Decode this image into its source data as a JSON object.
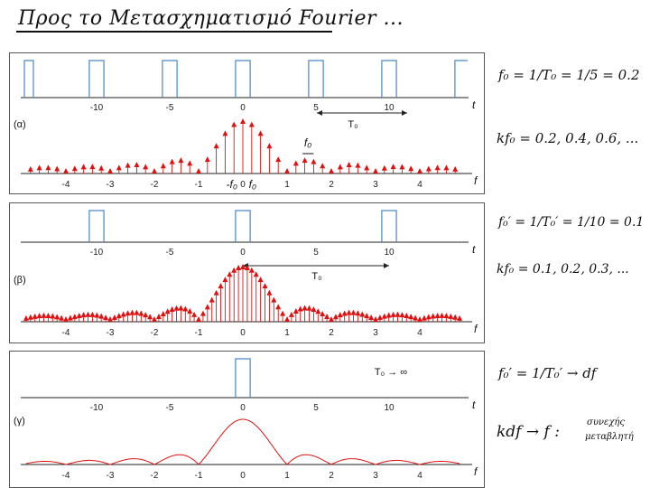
{
  "title": "Προς το Μετασχηματισμό Fourier ...",
  "panels": [
    {
      "label": "(α)",
      "t_ticks": [
        "-10",
        "-5",
        "0",
        "5",
        "10"
      ],
      "t_axis": "t",
      "f_ticks": [
        "-4",
        "-3",
        "-2",
        "-1",
        "0",
        "1",
        "2",
        "3",
        "4"
      ],
      "f_axis": "f",
      "period_label": "T₀",
      "annotations": [
        "f₀",
        "-f₀",
        "f₀"
      ]
    },
    {
      "label": "(β)",
      "t_ticks": [
        "-10",
        "-5",
        "0",
        "5",
        "10"
      ],
      "t_axis": "t",
      "f_ticks": [
        "-4",
        "-3",
        "-2",
        "-1",
        "0",
        "1",
        "2",
        "3",
        "4"
      ],
      "f_axis": "f",
      "period_label": "T₀"
    },
    {
      "label": "(γ)",
      "t_ticks": [
        "-10",
        "-5",
        "0",
        "5",
        "10"
      ],
      "t_axis": "t",
      "f_ticks": [
        "-4",
        "-3",
        "-2",
        "-1",
        "0",
        "1",
        "2",
        "3",
        "4"
      ],
      "f_axis": "f",
      "period_label": "T₀ → ∞"
    }
  ],
  "notes": {
    "n1": "f₀ = 1/T₀ = 1/5 = 0.2",
    "n2": "kf₀ = 0.2, 0.4, 0.6, ...",
    "n3": "f₀′ = 1/T₀′ = 1/10 = 0.1",
    "n4": "kf₀ = 0.1, 0.2, 0.3, ...",
    "n5": "f₀′ = 1/T₀′ → df",
    "n6": "kdf → f :",
    "n6b": "συνεχής",
    "n6c": "μεταβλητή"
  },
  "colors": {
    "pulse": "#4a86c5",
    "spectrum": "#e01010",
    "axis": "#222222"
  },
  "chart_data": [
    {
      "type": "line",
      "title": "",
      "xlabel": "t",
      "x": [
        -10,
        -5,
        0,
        5,
        10
      ],
      "period": 5,
      "pulse_width": 1
    },
    {
      "type": "bar",
      "title": "",
      "xlabel": "f",
      "spacing": 0.2,
      "xlim": [
        -5,
        5
      ]
    },
    {
      "type": "line",
      "title": "",
      "xlabel": "t",
      "x": [
        -10,
        -5,
        0,
        5,
        10
      ],
      "period": 10,
      "pulse_width": 1
    },
    {
      "type": "bar",
      "title": "",
      "xlabel": "f",
      "spacing": 0.1,
      "xlim": [
        -5,
        5
      ]
    },
    {
      "type": "line",
      "title": "",
      "xlabel": "t",
      "x": [
        0
      ],
      "period": "infinite",
      "pulse_width": 1
    },
    {
      "type": "line",
      "title": "",
      "xlabel": "f",
      "curve": "|sinc(f)|",
      "xlim": [
        -5,
        5
      ]
    }
  ]
}
